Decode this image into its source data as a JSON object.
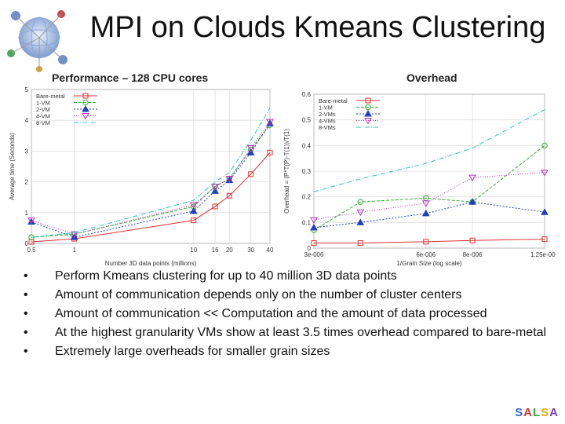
{
  "slide": {
    "title": "MPI on Clouds Kmeans Clustering",
    "brand": [
      "S",
      "A",
      "L",
      "S",
      "A"
    ],
    "brand_colors": [
      "#2d6cdf",
      "#e0342b",
      "#2aa845",
      "#f2a900",
      "#7a3fb5"
    ]
  },
  "bullets": [
    "Perform Kmeans clustering for up to 40 million 3D data points",
    "Amount of communication depends only on the number of cluster centers",
    "Amount of communication << Computation and the amount of data processed",
    "At the highest granularity VMs show at least 3.5 times overhead compared to bare-metal",
    "Extremely large overheads for smaller grain sizes"
  ],
  "chart_data": [
    {
      "type": "line",
      "title": "Performance – 128 CPU cores",
      "xlabel": "Number 3D data points (millions)",
      "ylabel": "Average time (Seconds)",
      "x_ticks": [
        0.5,
        1,
        10,
        16,
        20,
        30,
        40
      ],
      "x_tick_labels": [
        "0.5",
        "1",
        "10",
        "16",
        "20",
        "30",
        "40"
      ],
      "y_ticks": [
        0,
        1,
        2,
        3,
        4,
        5
      ],
      "ylim": [
        0,
        5
      ],
      "x": [
        0.5,
        1,
        10,
        16,
        20,
        30,
        40
      ],
      "legend_position": "top-left",
      "series": [
        {
          "name": "Bare-metal",
          "color": "#e03030",
          "marker": "square",
          "dash": "",
          "values": [
            0.05,
            0.15,
            0.75,
            1.2,
            1.55,
            2.25,
            2.95
          ]
        },
        {
          "name": "1-VM",
          "color": "#30b030",
          "marker": "circle",
          "dash": "4,2",
          "values": [
            0.2,
            0.3,
            1.2,
            1.85,
            2.1,
            3.05,
            3.85
          ]
        },
        {
          "name": "2-VM",
          "color": "#2040c0",
          "marker": "triangle",
          "dash": "2,2",
          "values": [
            0.7,
            0.2,
            1.05,
            1.7,
            2.05,
            2.95,
            3.9
          ]
        },
        {
          "name": "4-VM",
          "color": "#c030c0",
          "marker": "triangle-down",
          "dash": "1,2",
          "values": [
            0.75,
            0.3,
            1.25,
            1.85,
            2.1,
            3.1,
            3.95
          ]
        },
        {
          "name": "8-VM",
          "color": "#30c0c0",
          "marker": "none",
          "dash": "6,2,1,2",
          "values": [
            0.2,
            0.35,
            1.4,
            2.0,
            2.3,
            3.35,
            4.4
          ]
        }
      ]
    },
    {
      "type": "line",
      "title": "Overhead",
      "xlabel": "1/Grain Size   (log scale)",
      "ylabel": "Overhead = (P*T(P)-T(1))/T(1)",
      "x_ticks": [
        3e-06,
        6e-06,
        8e-06,
        1.25e-05
      ],
      "x_tick_labels": [
        "3e-006",
        "6e-006",
        "8e-006",
        "1.25e-005"
      ],
      "y_ticks": [
        0,
        0.1,
        0.2,
        0.3,
        0.4,
        0.5,
        0.6
      ],
      "y_tick_labels": [
        "0",
        "0.1",
        "0.2",
        "0.3",
        "0.4",
        "0.5",
        "0.6"
      ],
      "ylim": [
        0,
        0.6
      ],
      "x": [
        3e-06,
        4e-06,
        6e-06,
        8e-06,
        1.25e-05
      ],
      "legend_position": "top-left",
      "series": [
        {
          "name": "Bare-metal",
          "color": "#e03030",
          "marker": "square",
          "dash": "",
          "values": [
            0.02,
            0.02,
            0.025,
            0.03,
            0.035
          ]
        },
        {
          "name": "1-VM",
          "color": "#30b030",
          "marker": "circle",
          "dash": "4,2",
          "values": [
            0.07,
            0.18,
            0.195,
            0.18,
            0.4
          ]
        },
        {
          "name": "2-VMs",
          "color": "#2040c0",
          "marker": "triangle",
          "dash": "2,2",
          "values": [
            0.08,
            0.1,
            0.135,
            0.18,
            0.14
          ]
        },
        {
          "name": "4-VMs",
          "color": "#c030c0",
          "marker": "triangle-down",
          "dash": "1,2",
          "values": [
            0.11,
            0.14,
            0.175,
            0.275,
            0.295
          ]
        },
        {
          "name": "8-VMs",
          "color": "#30c0c0",
          "marker": "none",
          "dash": "6,2,1,2",
          "values": [
            0.22,
            0.27,
            0.33,
            0.39,
            0.54
          ]
        }
      ]
    }
  ]
}
